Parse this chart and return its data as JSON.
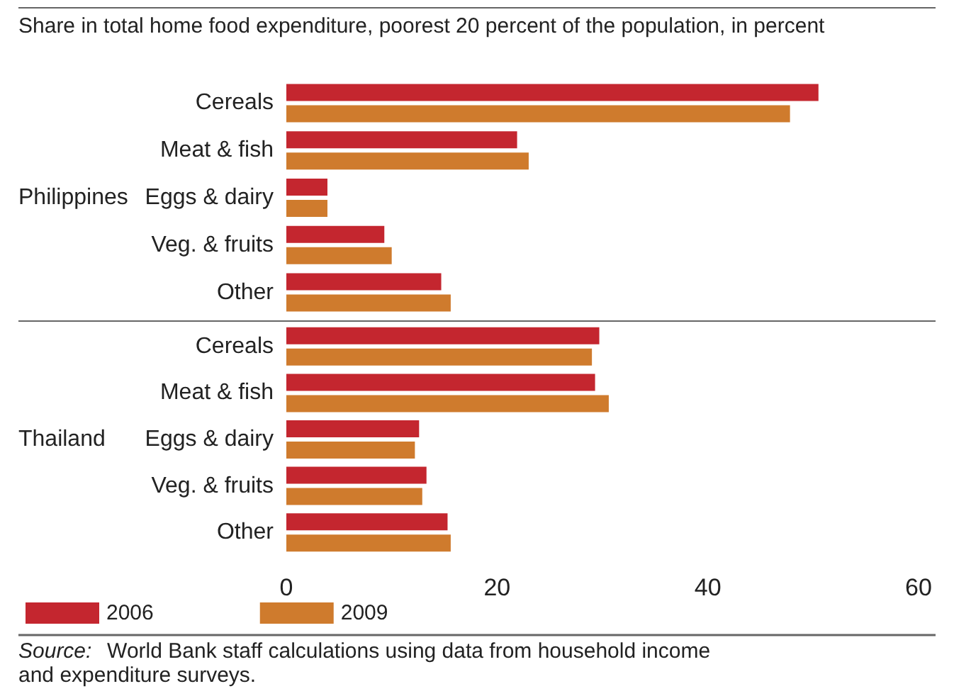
{
  "chart_data": [
    {
      "type": "bar",
      "orientation": "horizontal",
      "title": "Share in total home food expenditure, poorest 20 percent of the population, in percent",
      "ylabel": "Philippines",
      "categories": [
        "Cereals",
        "Meat & fish",
        "Eggs & dairy",
        "Veg. & fruits",
        "Other"
      ],
      "series": [
        {
          "color": "#c4262f",
          "values": [
            50.5,
            21.9,
            3.9,
            9.3,
            14.7
          ]
        },
        {
          "color": "#cf7b2d",
          "values": [
            47.8,
            23.0,
            3.9,
            10.0,
            15.6
          ]
        }
      ],
      "xlim": [
        0,
        60
      ],
      "xticks": [
        0,
        20,
        40,
        60
      ],
      "tick_labels": "y",
      "grid": false,
      "legend": false
    },
    {
      "type": "bar",
      "orientation": "horizontal",
      "ylabel": "Thailand",
      "categories": [
        "Cereals",
        "Meat & fish",
        "Eggs & dairy",
        "Veg. & fruits",
        "Other"
      ],
      "series": [
        {
          "name": "2006",
          "color": "#c4262f",
          "values": [
            29.7,
            29.3,
            12.6,
            13.3,
            15.3
          ]
        },
        {
          "name": "2009",
          "color": "#cf7b2d",
          "values": [
            29.0,
            30.6,
            12.2,
            12.9,
            15.6
          ]
        }
      ],
      "xlim": [
        0,
        60
      ],
      "xticks": [
        0,
        20,
        40,
        60
      ],
      "grid": false,
      "legend": "bottom left",
      "annotations": [
        "Source: World Bank staff calculations using data from household income and expenditure surveys."
      ]
    }
  ]
}
